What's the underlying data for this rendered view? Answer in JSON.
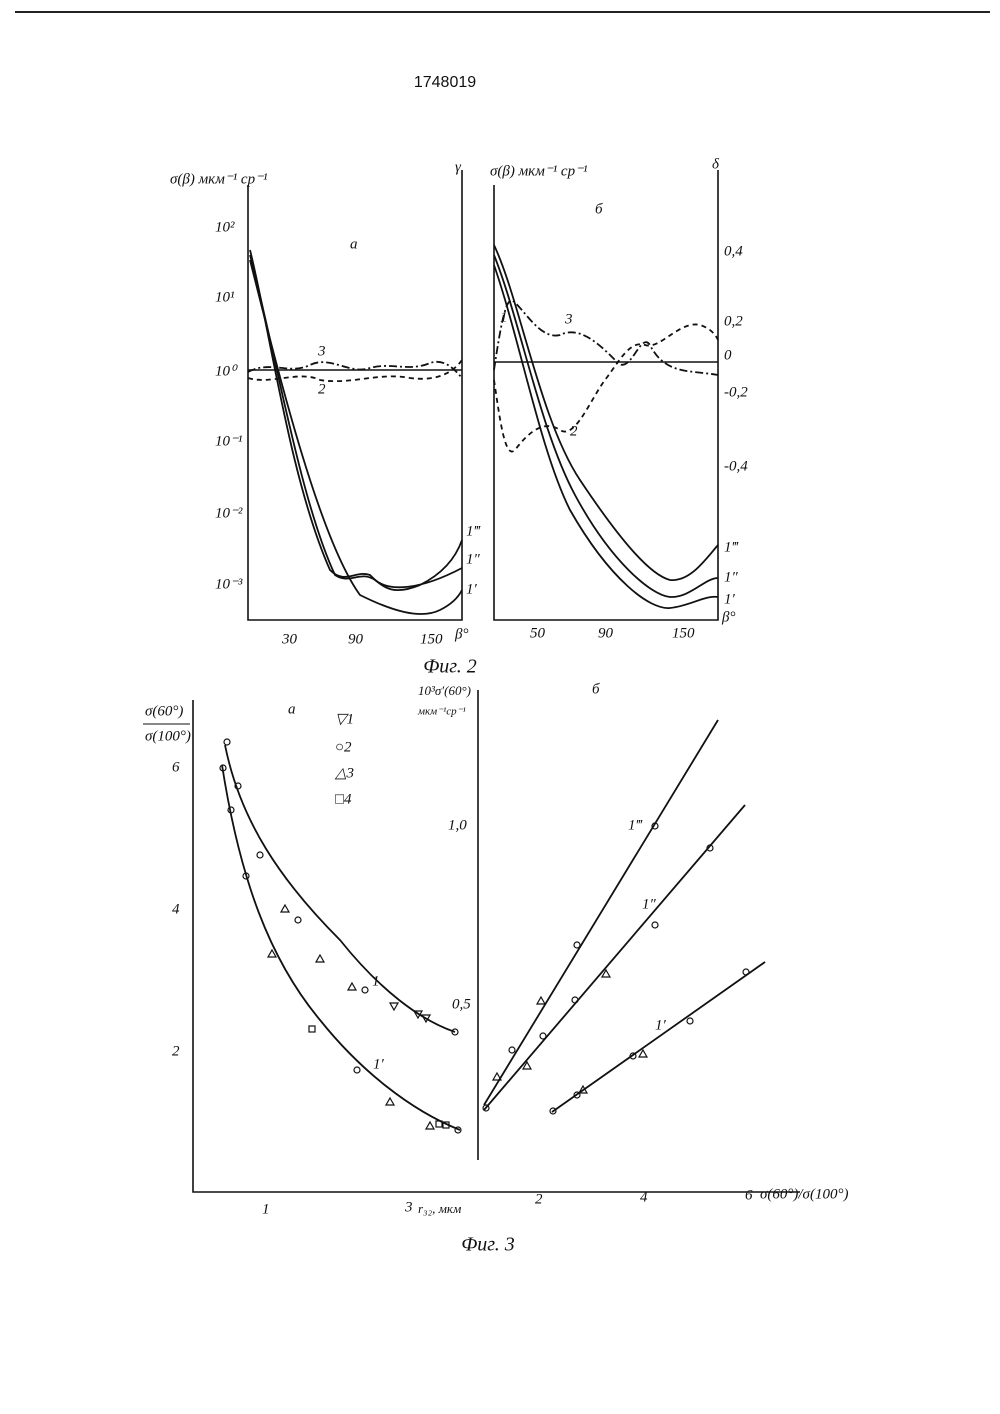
{
  "header": {
    "number": "1748019"
  },
  "figure2": {
    "caption": "Фиг. 2",
    "panels": [
      {
        "label": "а",
        "y_label": "σ(β) мкм⁻¹ ср⁻¹",
        "y2_label": "γ",
        "x_label": "β°",
        "yticks": [
          "10²",
          "10¹",
          "10⁰",
          "10⁻¹",
          "10⁻²",
          "10⁻³"
        ],
        "xticks": [
          "30",
          "90",
          "150"
        ],
        "curve_labels": [
          "3",
          "2",
          "1‴",
          "1″",
          "1′"
        ]
      },
      {
        "label": "б",
        "y_label": "σ(β) мкм⁻¹ ср⁻¹",
        "y2_label": "δ",
        "x_label": "β°",
        "y2ticks": [
          "0,4",
          "0,2",
          "0",
          "-0,2",
          "-0,4"
        ],
        "xticks": [
          "50",
          "90",
          "150"
        ],
        "curve_labels": [
          "1",
          "3",
          "2",
          "1‴",
          "1″",
          "1′"
        ]
      }
    ]
  },
  "figure3": {
    "caption": "Фиг. 3",
    "panels": [
      {
        "label": "а",
        "y_label_top": "σ(60°)",
        "y_label_bottom": "σ(100°)",
        "x_label": "r₃₂, мкм",
        "yticks": [
          "6",
          "4",
          "2"
        ],
        "xticks": [
          "1",
          "3"
        ],
        "legend": [
          "▽1",
          "○2",
          "△3",
          "□4"
        ],
        "curve_labels": [
          "1",
          "1′"
        ]
      },
      {
        "label": "б",
        "y_label_top": "10³σ′(60°)",
        "y_label_bottom": "мкм⁻¹ср⁻¹",
        "x_label": "σ(60°)/σ(100°)",
        "yticks": [
          "1,0",
          "0,5"
        ],
        "xticks": [
          "2",
          "4",
          "6"
        ],
        "curve_labels": [
          "1‴",
          "1″",
          "1′"
        ]
      }
    ]
  }
}
